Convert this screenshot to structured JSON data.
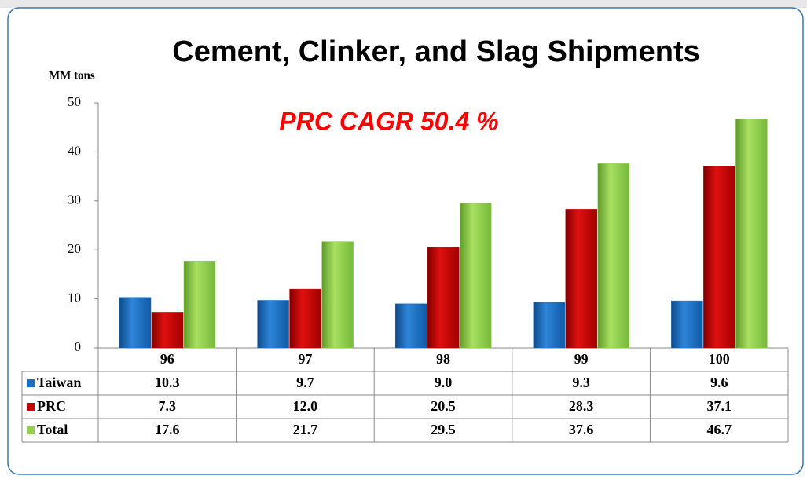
{
  "chart_data": {
    "type": "bar",
    "title": "Cement, Clinker, and Slag Shipments",
    "y_label": "MM  tons",
    "annotation": "PRC CAGR  50.4 %",
    "categories": [
      "96",
      "97",
      "98",
      "99",
      "100"
    ],
    "series": [
      {
        "name": "Taiwan",
        "color": "#1f6fc0",
        "values": [
          10.3,
          9.7,
          9.0,
          9.3,
          9.6
        ],
        "value_labels": [
          "10.3",
          "9.7",
          "9.0",
          "9.3",
          "9.6"
        ]
      },
      {
        "name": "PRC",
        "color": "#c00000",
        "values": [
          7.3,
          12.0,
          20.5,
          28.3,
          37.1
        ],
        "value_labels": [
          "7.3",
          "12.0",
          "20.5",
          "28.3",
          "37.1"
        ]
      },
      {
        "name": "Total",
        "color": "#92d050",
        "values": [
          17.6,
          21.7,
          29.5,
          37.6,
          46.7
        ],
        "value_labels": [
          "17.6",
          "21.7",
          "29.5",
          "37.6",
          "46.7"
        ]
      }
    ],
    "ylim": [
      0,
      50
    ],
    "yticks": [
      0,
      10,
      20,
      30,
      40,
      50
    ]
  }
}
